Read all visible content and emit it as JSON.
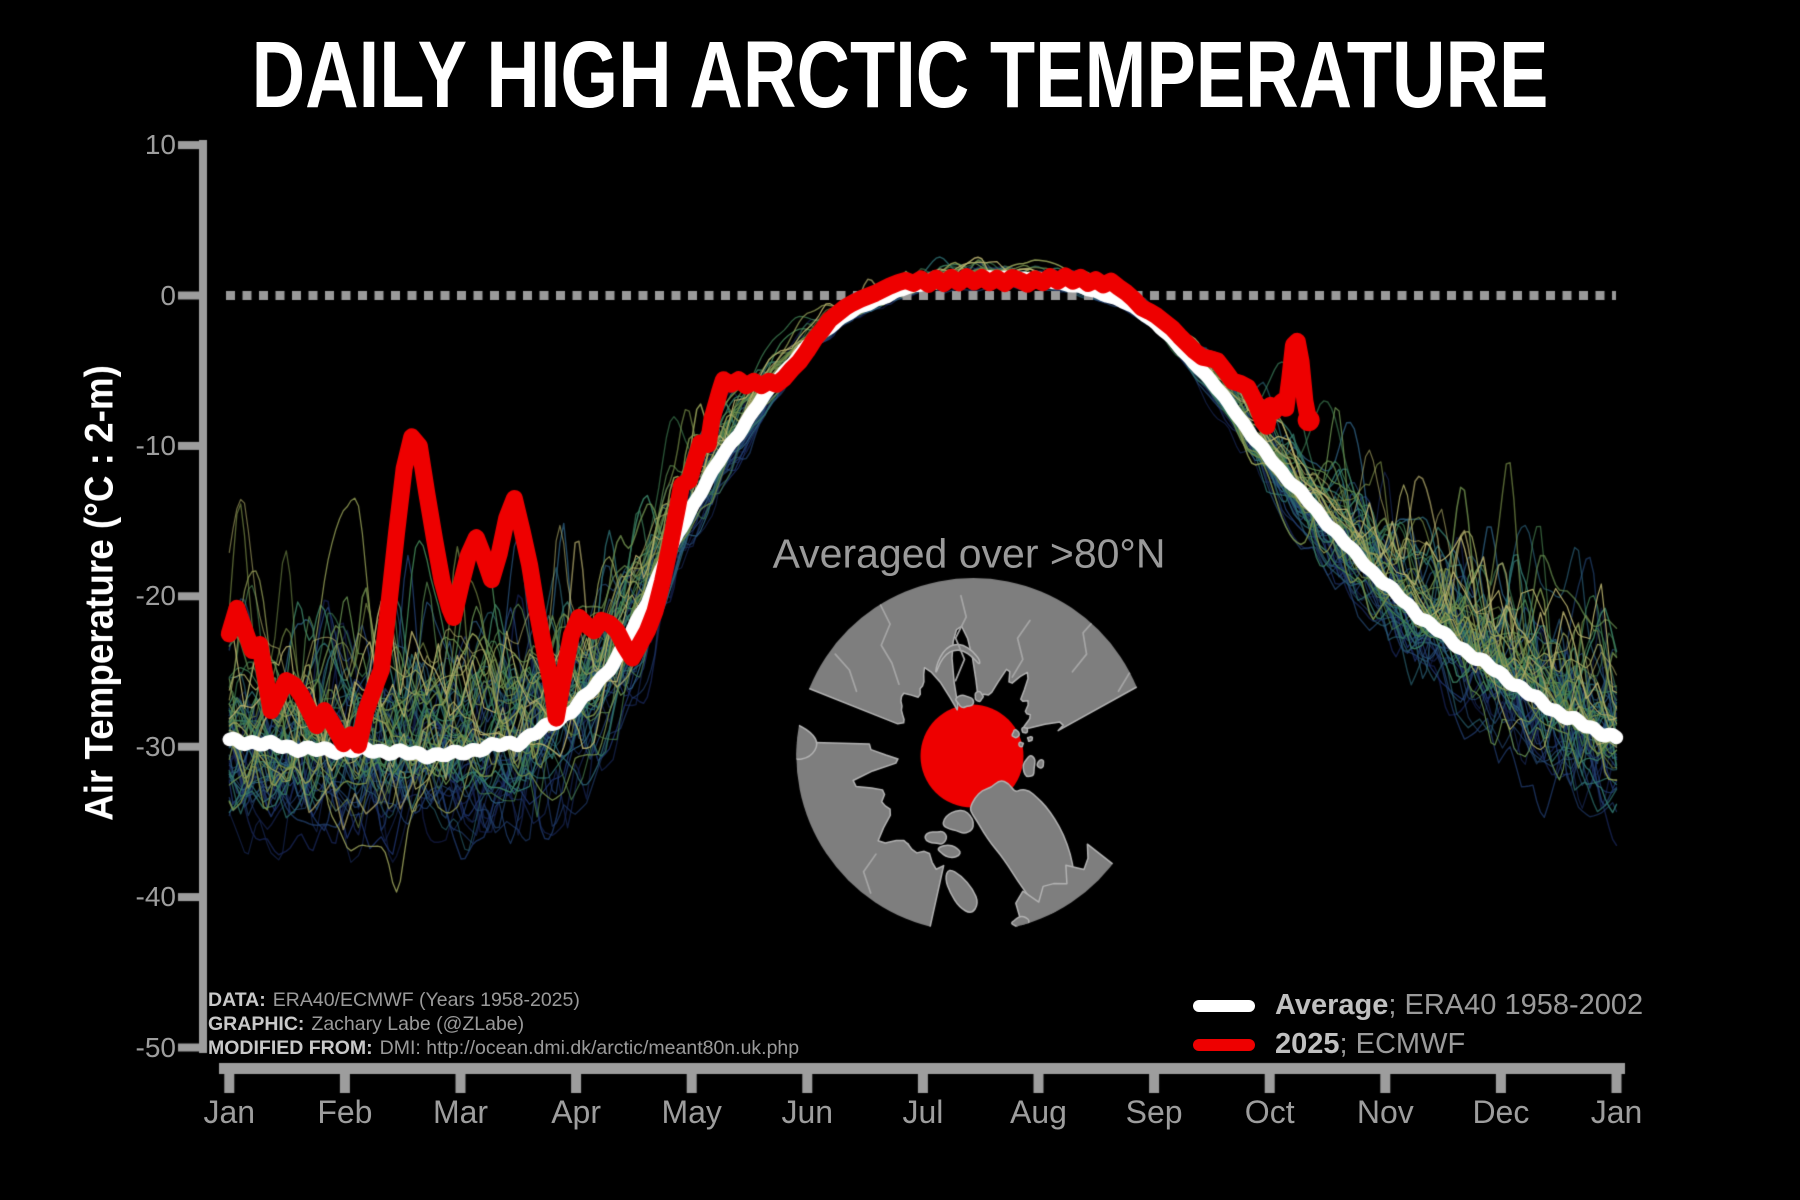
{
  "chart_data": {
    "type": "line",
    "title": "DAILY HIGH ARCTIC TEMPERATURE",
    "ylabel": "Air Temperature (°C : 2-m)",
    "ylim": [
      -50,
      10
    ],
    "yticks": [
      10,
      0,
      -10,
      -20,
      -30,
      -40,
      -50
    ],
    "xticklabels": [
      "Jan",
      "Feb",
      "Mar",
      "Apr",
      "May",
      "Jun",
      "Jul",
      "Aug",
      "Sep",
      "Oct",
      "Nov",
      "Dec",
      "Jan"
    ],
    "zero_reference": 0,
    "annotation": "Averaged over >80°N",
    "inset_map": {
      "description": "North polar map, land in gray, ocean black",
      "highlight": "red filled circle marks region north of 80N",
      "land_color": "#7e7e7e",
      "highlight_color": "#ee0000"
    },
    "credits": [
      {
        "label": "DATA:",
        "text": "ERA40/ECMWF (Years 1958-2025)"
      },
      {
        "label": "GRAPHIC:",
        "text": "Zachary Labe (@ZLabe)"
      },
      {
        "label": "MODIFIED FROM:",
        "text": "DMI: http://ocean.dmi.dk/arctic/meant80n.uk.php"
      }
    ],
    "legend": [
      {
        "swatch_color": "#ffffff",
        "bold": "Average",
        "rest": "; ERA40 1958-2002"
      },
      {
        "swatch_color": "#ee0000",
        "bold": "2025",
        "rest": "; ECMWF"
      }
    ],
    "series": {
      "average": {
        "name": "Average ERA40 1958-2002",
        "color": "#ffffff",
        "points": [
          [
            0,
            -29.6
          ],
          [
            10,
            -29.9
          ],
          [
            20,
            -30.1
          ],
          [
            31,
            -30.25
          ],
          [
            41,
            -30.35
          ],
          [
            50,
            -30.45
          ],
          [
            59,
            -30.5
          ],
          [
            67,
            -30.15
          ],
          [
            76,
            -29.7
          ],
          [
            85,
            -28.4
          ],
          [
            90,
            -27.6
          ],
          [
            94,
            -26.7
          ],
          [
            98,
            -25.5
          ],
          [
            102,
            -24.1
          ],
          [
            106,
            -22.3
          ],
          [
            110,
            -20.3
          ],
          [
            114,
            -17.9
          ],
          [
            118,
            -15.9
          ],
          [
            122,
            -14.0
          ],
          [
            126,
            -12.2
          ],
          [
            130,
            -10.6
          ],
          [
            134,
            -9.2
          ],
          [
            138,
            -7.6
          ],
          [
            143,
            -5.9
          ],
          [
            147,
            -4.8
          ],
          [
            152,
            -3.4
          ],
          [
            156,
            -2.5
          ],
          [
            161,
            -1.5
          ],
          [
            165,
            -0.9
          ],
          [
            170,
            -0.3
          ],
          [
            174,
            0.1
          ],
          [
            178,
            0.5
          ],
          [
            183,
            0.8
          ],
          [
            187,
            1.0
          ],
          [
            192,
            1.1
          ],
          [
            196,
            1.15
          ],
          [
            200,
            1.2
          ],
          [
            205,
            1.2
          ],
          [
            210,
            1.1
          ],
          [
            214,
            1.0
          ],
          [
            218,
            0.85
          ],
          [
            223,
            0.6
          ],
          [
            227,
            0.35
          ],
          [
            231,
            0.05
          ],
          [
            236,
            -0.5
          ],
          [
            240,
            -1.1
          ],
          [
            244,
            -1.9
          ],
          [
            248,
            -2.9
          ],
          [
            252,
            -4.0
          ],
          [
            256,
            -5.0
          ],
          [
            261,
            -6.5
          ],
          [
            265,
            -7.8
          ],
          [
            269,
            -9.3
          ],
          [
            274,
            -10.9
          ],
          [
            278,
            -12.1
          ],
          [
            283,
            -13.4
          ],
          [
            287,
            -14.6
          ],
          [
            292,
            -15.9
          ],
          [
            296,
            -17.1
          ],
          [
            300,
            -18.2
          ],
          [
            305,
            -19.4
          ],
          [
            309,
            -20.4
          ],
          [
            313,
            -21.3
          ],
          [
            318,
            -22.2
          ],
          [
            322,
            -23.0
          ],
          [
            327,
            -23.9
          ],
          [
            331,
            -24.6
          ],
          [
            336,
            -25.5
          ],
          [
            340,
            -26.2
          ],
          [
            345,
            -27.0
          ],
          [
            350,
            -27.7
          ],
          [
            355,
            -28.35
          ],
          [
            360,
            -28.95
          ],
          [
            365,
            -29.5
          ]
        ]
      },
      "year2025": {
        "name": "2025 ECMWF",
        "color": "#ee0000",
        "end_dot": true,
        "points": [
          [
            0,
            -22.5
          ],
          [
            2,
            -20.8
          ],
          [
            4,
            -22.2
          ],
          [
            6,
            -23.6
          ],
          [
            8,
            -23.2
          ],
          [
            11,
            -27.6
          ],
          [
            13,
            -26.6
          ],
          [
            15,
            -25.6
          ],
          [
            17,
            -25.9
          ],
          [
            19,
            -26.6
          ],
          [
            21,
            -27.6
          ],
          [
            23,
            -28.6
          ],
          [
            25,
            -27.6
          ],
          [
            27,
            -28.4
          ],
          [
            30,
            -29.8
          ],
          [
            32,
            -29.2
          ],
          [
            34,
            -29.9
          ],
          [
            36,
            -27.6
          ],
          [
            38,
            -26.2
          ],
          [
            40,
            -24.9
          ],
          [
            42,
            -20.5
          ],
          [
            44,
            -15.8
          ],
          [
            46,
            -11.5
          ],
          [
            48,
            -9.4
          ],
          [
            50,
            -10.0
          ],
          [
            52,
            -13.2
          ],
          [
            54,
            -16.2
          ],
          [
            56,
            -19.0
          ],
          [
            58,
            -20.8
          ],
          [
            59,
            -21.4
          ],
          [
            61,
            -19.2
          ],
          [
            63,
            -17.2
          ],
          [
            65,
            -16.1
          ],
          [
            67,
            -17.4
          ],
          [
            69,
            -18.9
          ],
          [
            71,
            -17.2
          ],
          [
            73,
            -14.8
          ],
          [
            75,
            -13.5
          ],
          [
            77,
            -15.6
          ],
          [
            79,
            -17.9
          ],
          [
            81,
            -21.0
          ],
          [
            83,
            -23.7
          ],
          [
            85,
            -26.2
          ],
          [
            86,
            -28.1
          ],
          [
            88,
            -25.2
          ],
          [
            90,
            -22.6
          ],
          [
            92,
            -21.4
          ],
          [
            94,
            -21.9
          ],
          [
            96,
            -22.3
          ],
          [
            98,
            -21.6
          ],
          [
            100,
            -21.8
          ],
          [
            102,
            -22.3
          ],
          [
            104,
            -23.3
          ],
          [
            106,
            -24.1
          ],
          [
            108,
            -23.2
          ],
          [
            110,
            -22.3
          ],
          [
            112,
            -21.0
          ],
          [
            114,
            -19.0
          ],
          [
            116,
            -16.6
          ],
          [
            118,
            -14.0
          ],
          [
            119,
            -12.6
          ],
          [
            121,
            -12.3
          ],
          [
            123,
            -10.6
          ],
          [
            124,
            -9.8
          ],
          [
            126,
            -9.9
          ],
          [
            127,
            -8.2
          ],
          [
            129,
            -6.4
          ],
          [
            130,
            -5.6
          ],
          [
            132,
            -5.9
          ],
          [
            134,
            -5.6
          ],
          [
            136,
            -6.0
          ],
          [
            138,
            -5.7
          ],
          [
            140,
            -6.0
          ],
          [
            142,
            -5.7
          ],
          [
            144,
            -5.9
          ],
          [
            146,
            -5.5
          ],
          [
            148,
            -4.9
          ],
          [
            150,
            -4.4
          ],
          [
            152,
            -3.7
          ],
          [
            154,
            -2.9
          ],
          [
            156,
            -2.3
          ],
          [
            158,
            -1.6
          ],
          [
            160,
            -1.2
          ],
          [
            162,
            -0.8
          ],
          [
            164,
            -0.5
          ],
          [
            166,
            -0.25
          ],
          [
            168,
            -0.05
          ],
          [
            170,
            0.15
          ],
          [
            172,
            0.4
          ],
          [
            174,
            0.65
          ],
          [
            176,
            0.85
          ],
          [
            178,
            1.0
          ],
          [
            180,
            0.8
          ],
          [
            182,
            1.1
          ],
          [
            184,
            0.75
          ],
          [
            186,
            1.15
          ],
          [
            188,
            0.8
          ],
          [
            190,
            1.2
          ],
          [
            192,
            0.85
          ],
          [
            194,
            1.25
          ],
          [
            196,
            0.9
          ],
          [
            198,
            1.2
          ],
          [
            200,
            0.85
          ],
          [
            202,
            1.15
          ],
          [
            204,
            0.8
          ],
          [
            206,
            1.2
          ],
          [
            208,
            1.0
          ],
          [
            210,
            0.75
          ],
          [
            212,
            1.1
          ],
          [
            214,
            0.85
          ],
          [
            216,
            1.25
          ],
          [
            218,
            0.95
          ],
          [
            220,
            1.3
          ],
          [
            222,
            0.95
          ],
          [
            224,
            1.2
          ],
          [
            226,
            0.8
          ],
          [
            228,
            1.05
          ],
          [
            230,
            0.7
          ],
          [
            232,
            0.95
          ],
          [
            234,
            0.55
          ],
          [
            236,
            0.2
          ],
          [
            238,
            -0.25
          ],
          [
            240,
            -0.8
          ],
          [
            242,
            -1.05
          ],
          [
            244,
            -1.35
          ],
          [
            246,
            -1.75
          ],
          [
            248,
            -2.15
          ],
          [
            250,
            -2.7
          ],
          [
            252,
            -3.2
          ],
          [
            254,
            -3.7
          ],
          [
            256,
            -4.1
          ],
          [
            258,
            -4.2
          ],
          [
            260,
            -4.35
          ],
          [
            262,
            -5.0
          ],
          [
            264,
            -5.7
          ],
          [
            266,
            -5.85
          ],
          [
            268,
            -6.1
          ],
          [
            270,
            -7.1
          ],
          [
            272,
            -8.4
          ],
          [
            273,
            -8.7
          ],
          [
            274,
            -7.3
          ],
          [
            275,
            -7.7
          ],
          [
            276,
            -7.3
          ],
          [
            277,
            -7.05
          ],
          [
            278,
            -7.5
          ],
          [
            279,
            -5.6
          ],
          [
            280,
            -3.3
          ],
          [
            281,
            -3.05
          ],
          [
            282,
            -4.4
          ],
          [
            283,
            -7.0
          ],
          [
            284,
            -8.3
          ]
        ]
      },
      "ensemble": {
        "name": "Individual years 1958-2024",
        "count": 67,
        "alpha": 0.75,
        "colormap": [
          "#131c44",
          "#1e3268",
          "#2a567c",
          "#2e7470",
          "#3f7f52",
          "#7c9048",
          "#bdb472"
        ],
        "winter_envelope": [
          -43,
          -12
        ],
        "summer_envelope": [
          -1.5,
          2.6
        ],
        "seed": 11
      }
    }
  }
}
